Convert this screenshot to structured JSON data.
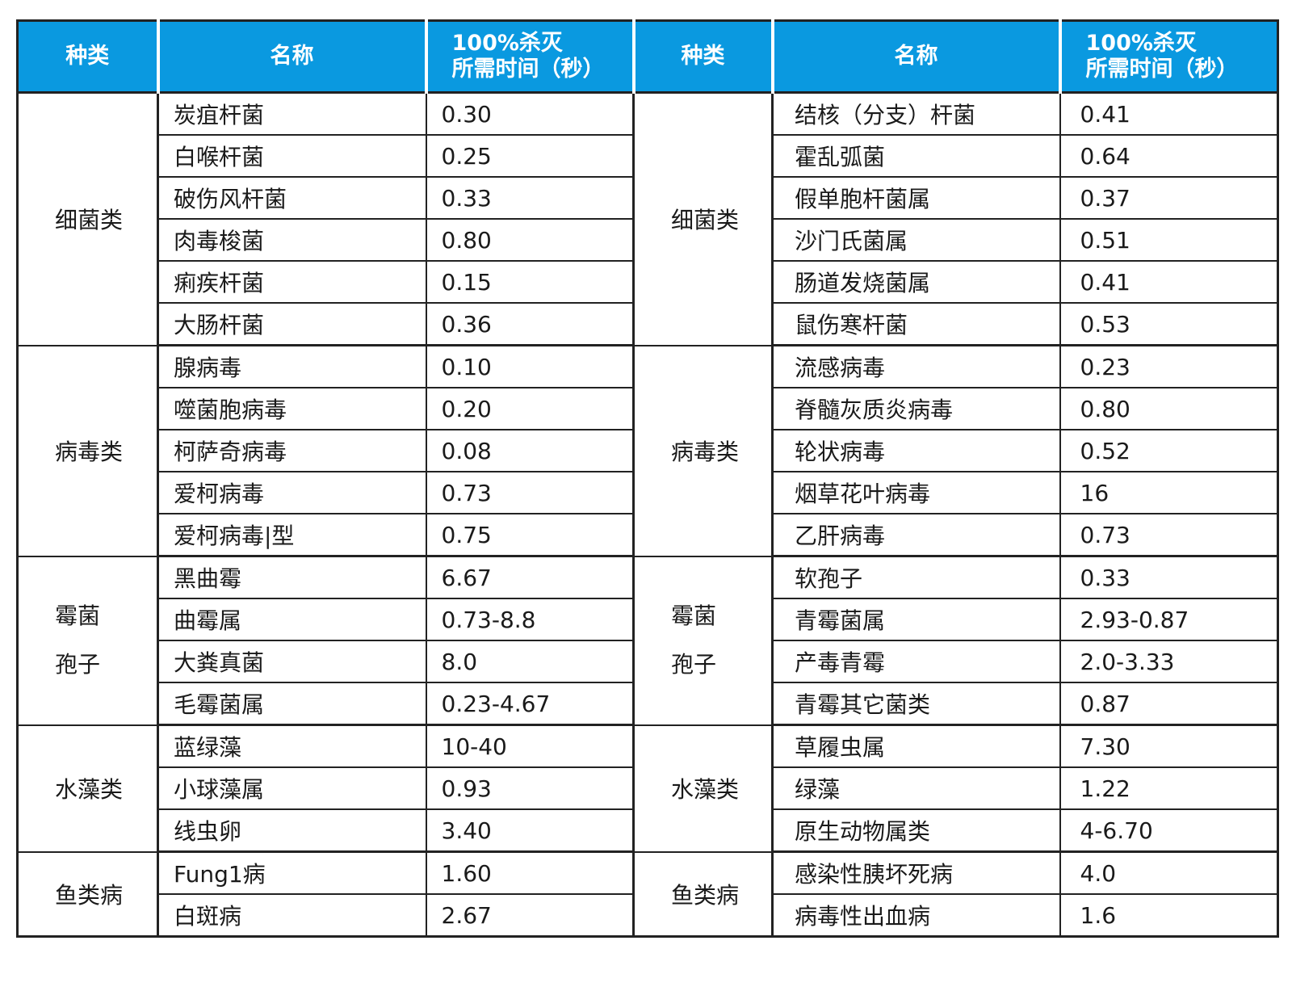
{
  "headers": {
    "category": "种类",
    "name": "名称",
    "time_line1": "100%杀灭",
    "time_line2": "所需时间（秒）"
  },
  "left": [
    {
      "category": "细菌类",
      "items": [
        {
          "name": "炭疽杆菌",
          "time": "0.30"
        },
        {
          "name": "白喉杆菌",
          "time": "0.25"
        },
        {
          "name": "破伤风杆菌",
          "time": "0.33"
        },
        {
          "name": "肉毒梭菌",
          "time": "0.80"
        },
        {
          "name": "痢疾杆菌",
          "time": "0.15"
        },
        {
          "name": "大肠杆菌",
          "time": "0.36"
        }
      ]
    },
    {
      "category": "病毒类",
      "items": [
        {
          "name": "腺病毒",
          "time": "0.10"
        },
        {
          "name": "噬菌胞病毒",
          "time": "0.20"
        },
        {
          "name": "柯萨奇病毒",
          "time": "0.08"
        },
        {
          "name": "爱柯病毒",
          "time": "0.73"
        },
        {
          "name": "爱柯病毒|型",
          "time": "0.75"
        }
      ]
    },
    {
      "category_line1": "霉菌",
      "category_line2": "孢子",
      "items": [
        {
          "name": "黑曲霉",
          "time": "6.67"
        },
        {
          "name": "曲霉属",
          "time": "0.73-8.8"
        },
        {
          "name": "大粪真菌",
          "time": "8.0"
        },
        {
          "name": "毛霉菌属",
          "time": "0.23-4.67"
        }
      ]
    },
    {
      "category": "水藻类",
      "items": [
        {
          "name": "蓝绿藻",
          "time": "10-40"
        },
        {
          "name": "小球藻属",
          "time": "0.93"
        },
        {
          "name": "线虫卵",
          "time": "3.40"
        }
      ]
    },
    {
      "category": "鱼类病",
      "items": [
        {
          "name": "Fung1病",
          "time": "1.60"
        },
        {
          "name": "白斑病",
          "time": "2.67"
        }
      ]
    }
  ],
  "right": [
    {
      "category": "细菌类",
      "items": [
        {
          "name": "结核（分支）杆菌",
          "time": "0.41"
        },
        {
          "name": "霍乱弧菌",
          "time": "0.64"
        },
        {
          "name": "假单胞杆菌属",
          "time": "0.37"
        },
        {
          "name": "沙门氏菌属",
          "time": "0.51"
        },
        {
          "name": "肠道发烧菌属",
          "time": "0.41"
        },
        {
          "name": "鼠伤寒杆菌",
          "time": "0.53"
        }
      ]
    },
    {
      "category": "病毒类",
      "items": [
        {
          "name": "流感病毒",
          "time": "0.23"
        },
        {
          "name": "脊髓灰质炎病毒",
          "time": "0.80"
        },
        {
          "name": "轮状病毒",
          "time": "0.52"
        },
        {
          "name": "烟草花叶病毒",
          "time": "16"
        },
        {
          "name": "乙肝病毒",
          "time": "0.73"
        }
      ]
    },
    {
      "category_line1": "霉菌",
      "category_line2": "孢子",
      "items": [
        {
          "name": "软孢子",
          "time": "0.33"
        },
        {
          "name": "青霉菌属",
          "time": "2.93-0.87"
        },
        {
          "name": "产毒青霉",
          "time": "2.0-3.33"
        },
        {
          "name": "青霉其它菌类",
          "time": "0.87"
        }
      ]
    },
    {
      "category": "水藻类",
      "items": [
        {
          "name": "草履虫属",
          "time": "7.30"
        },
        {
          "name": "绿藻",
          "time": "1.22"
        },
        {
          "name": "原生动物属类",
          "time": "4-6.70"
        }
      ]
    },
    {
      "category": "鱼类病",
      "items": [
        {
          "name": "感染性胰坏死病",
          "time": "4.0"
        },
        {
          "name": "病毒性出血病",
          "time": "1.6"
        }
      ]
    }
  ]
}
